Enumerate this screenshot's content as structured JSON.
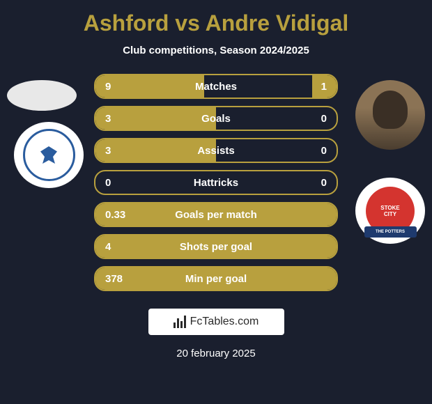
{
  "title": "Ashford vs Andre Vidigal",
  "subtitle": "Club competitions, Season 2024/2025",
  "date": "20 february 2025",
  "watermark": "FcTables.com",
  "club_right": {
    "line1": "STOKE",
    "line2": "CITY",
    "banner": "THE POTTERS"
  },
  "colors": {
    "background": "#1a1f2e",
    "accent": "#b8a03e",
    "text_white": "#ffffff",
    "club_left_border": "#2a5c9e",
    "club_right_bg": "#d4342f",
    "club_right_banner": "#1e3a6e"
  },
  "stats": [
    {
      "left_value": "9",
      "label": "Matches",
      "right_value": "1",
      "left_fill_pct": 45,
      "right_fill_pct": 10
    },
    {
      "left_value": "3",
      "label": "Goals",
      "right_value": "0",
      "left_fill_pct": 50,
      "right_fill_pct": 0
    },
    {
      "left_value": "3",
      "label": "Assists",
      "right_value": "0",
      "left_fill_pct": 50,
      "right_fill_pct": 0
    },
    {
      "left_value": "0",
      "label": "Hattricks",
      "right_value": "0",
      "left_fill_pct": 0,
      "right_fill_pct": 0
    },
    {
      "left_value": "0.33",
      "label": "Goals per match",
      "right_value": "",
      "left_fill_pct": 100,
      "right_fill_pct": 0,
      "full": true
    },
    {
      "left_value": "4",
      "label": "Shots per goal",
      "right_value": "",
      "left_fill_pct": 100,
      "right_fill_pct": 0,
      "full": true
    },
    {
      "left_value": "378",
      "label": "Min per goal",
      "right_value": "",
      "left_fill_pct": 100,
      "right_fill_pct": 0,
      "full": true
    }
  ]
}
